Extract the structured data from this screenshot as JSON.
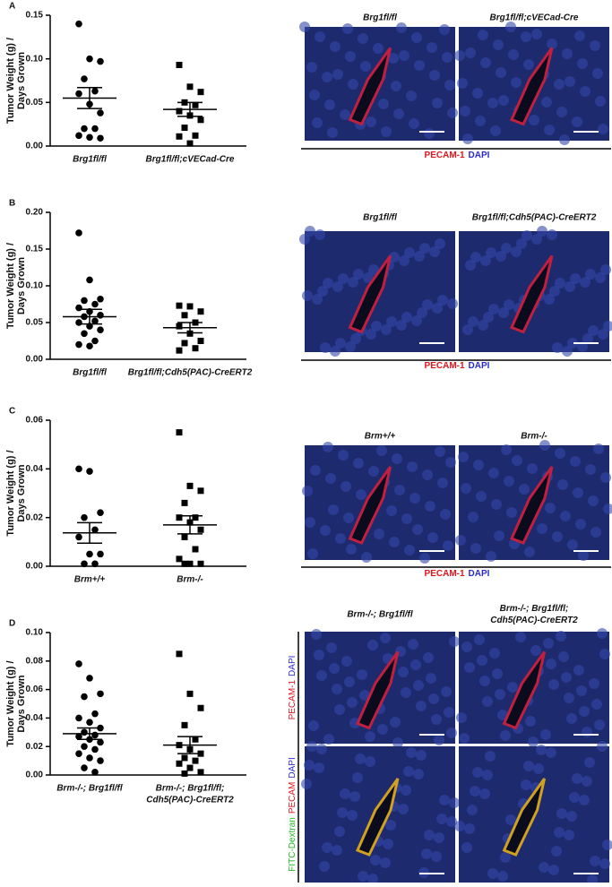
{
  "chart_data": [
    {
      "type": "scatter",
      "panel": "A",
      "ylabel": [
        "Tumor Weight (g) /",
        "Days Grown"
      ],
      "ylim": [
        0,
        0.15
      ],
      "yticks": [
        {
          "value": 0,
          "label": "0.00"
        },
        0.05,
        {
          "value": 0.1,
          "label": "0.10"
        },
        0.15
      ],
      "categories": [
        [
          "Brg1fl/fl"
        ],
        [
          "Brg1fl/fl;cVECad-Cre"
        ]
      ],
      "groups": [
        {
          "marker": "circle",
          "values": [
            0.14,
            0.1,
            0.097,
            0.077,
            0.063,
            0.06,
            0.048,
            0.038,
            0.02,
            0.02,
            0.012,
            0.01,
            0.009
          ],
          "mean": 0.055,
          "sem": 0.012
        },
        {
          "marker": "square",
          "values": [
            0.093,
            0.068,
            0.062,
            0.05,
            0.047,
            0.04,
            0.035,
            0.03,
            0.021,
            0.012,
            0.011,
            0.003
          ],
          "mean": 0.042,
          "sem": 0.008
        }
      ],
      "images": {
        "columns": [
          [
            "Brg1fl/fl"
          ],
          [
            "Brg1fl/fl;cVECad-Cre"
          ]
        ],
        "legend": [
          {
            "text": "PECAM-1",
            "color": "#e0141c"
          },
          {
            "text": "DAPI",
            "color": "#2a2ad0"
          }
        ]
      }
    },
    {
      "type": "scatter",
      "panel": "B",
      "ylabel": [
        "Tumor Weight (g) /",
        "Days Grown"
      ],
      "ylim": [
        0,
        0.2
      ],
      "yticks": [
        {
          "value": 0,
          "label": "0.00"
        },
        0.05,
        {
          "value": 0.1,
          "label": "0.10"
        },
        0.15,
        {
          "value": 0.2,
          "label": "0.20"
        }
      ],
      "categories": [
        [
          "Brg1fl/fl"
        ],
        [
          "Brg1fl/fl;Cdh5(PAC)-CreERT2"
        ]
      ],
      "groups": [
        {
          "marker": "circle",
          "values": [
            0.172,
            0.108,
            0.082,
            0.08,
            0.075,
            0.07,
            0.065,
            0.06,
            0.058,
            0.052,
            0.05,
            0.045,
            0.04,
            0.035,
            0.025,
            0.02,
            0.018
          ],
          "mean": 0.058,
          "sem": 0.01
        },
        {
          "marker": "square",
          "values": [
            0.073,
            0.072,
            0.065,
            0.06,
            0.05,
            0.045,
            0.035,
            0.025,
            0.022,
            0.015,
            0.012
          ],
          "mean": 0.043,
          "sem": 0.007
        }
      ],
      "images": {
        "columns": [
          [
            "Brg1fl/fl"
          ],
          [
            "Brg1fl/fl;Cdh5(PAC)-CreERT2"
          ]
        ],
        "legend": [
          {
            "text": "PECAM-1",
            "color": "#e0141c"
          },
          {
            "text": "DAPI",
            "color": "#2a2ad0"
          }
        ]
      }
    },
    {
      "type": "scatter",
      "panel": "C",
      "ylabel": [
        "Tumor Weight (g) /",
        "Days Grown"
      ],
      "ylim": [
        0,
        0.06
      ],
      "yticks": [
        {
          "value": 0,
          "label": "0.00"
        },
        0.02,
        0.04,
        0.06
      ],
      "categories": [
        [
          "Brm+/+"
        ],
        [
          "Brm-/-"
        ]
      ],
      "groups": [
        {
          "marker": "circle",
          "values": [
            0.04,
            0.039,
            0.022,
            0.02,
            0.015,
            0.012,
            0.005,
            0.005,
            0.001,
            0.001
          ],
          "mean": 0.0137,
          "sem": 0.0042
        },
        {
          "marker": "square",
          "values": [
            0.055,
            0.033,
            0.031,
            0.026,
            0.02,
            0.02,
            0.018,
            0.015,
            0.012,
            0.007,
            0.003,
            0.001,
            0.001,
            0.001
          ],
          "mean": 0.017,
          "sem": 0.0037
        }
      ],
      "images": {
        "columns": [
          [
            "Brm+/+"
          ],
          [
            "Brm-/-"
          ]
        ],
        "legend": [
          {
            "text": "PECAM-1",
            "color": "#e0141c"
          },
          {
            "text": "DAPI",
            "color": "#2a2ad0"
          }
        ]
      }
    },
    {
      "type": "scatter",
      "panel": "D",
      "ylabel": [
        "Tumor Weight (g) /",
        "Days Grown"
      ],
      "ylim": [
        0,
        0.1
      ],
      "yticks": [
        {
          "value": 0,
          "label": "0.00"
        },
        0.02,
        0.04,
        0.06,
        0.08,
        {
          "value": 0.1,
          "label": "0.10"
        }
      ],
      "categories": [
        [
          "Brm-/-; Brg1fl/fl"
        ],
        [
          "Brm-/-; Brg1fl/fl;",
          "Cdh5(PAC)-CreERT2"
        ]
      ],
      "groups": [
        {
          "marker": "circle",
          "values": [
            0.078,
            0.068,
            0.057,
            0.055,
            0.043,
            0.04,
            0.037,
            0.033,
            0.03,
            0.028,
            0.027,
            0.025,
            0.023,
            0.02,
            0.018,
            0.015,
            0.012,
            0.01,
            0.005,
            0.002
          ],
          "mean": 0.029,
          "sem": 0.004
        },
        {
          "marker": "square",
          "values": [
            0.085,
            0.057,
            0.047,
            0.035,
            0.025,
            0.021,
            0.018,
            0.015,
            0.012,
            0.01,
            0.008,
            0.005,
            0.002,
            0.001
          ],
          "mean": 0.021,
          "sem": 0.006
        }
      ],
      "images": {
        "columns": [
          [
            "Brm-/-; Brg1fl/fl"
          ],
          [
            "Brm-/-; Brg1fl/fl;",
            "Cdh5(PAC)-CreERT2"
          ]
        ],
        "rows": [
          [
            {
              "text": "PECAM-1",
              "color": "#e0141c"
            },
            {
              "text": "DAPI",
              "color": "#2a2ad0"
            }
          ],
          [
            {
              "text": "FITC-Dextran",
              "color": "#1fb81f"
            },
            {
              "text": "PECAM",
              "color": "#e0141c"
            },
            {
              "text": "DAPI",
              "color": "#2a2ad0"
            }
          ]
        ]
      }
    }
  ]
}
